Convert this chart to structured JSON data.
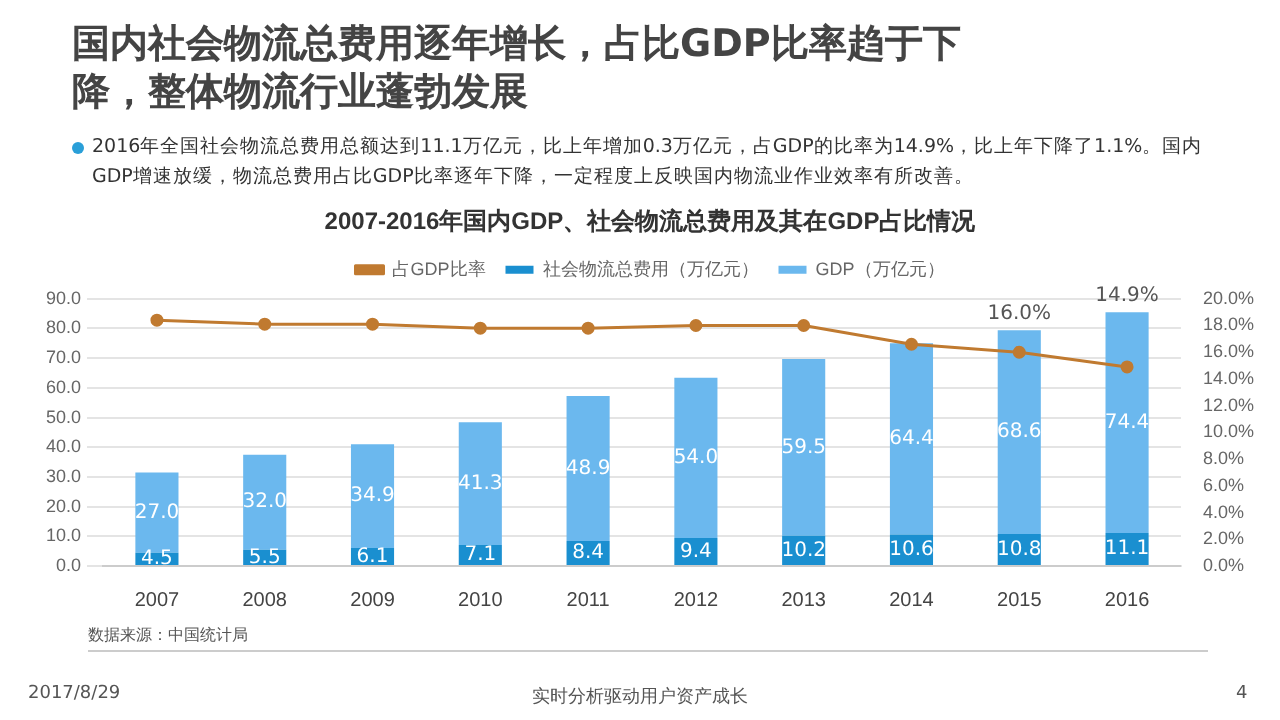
{
  "chart_data": {
    "type": "bar",
    "stacked": true,
    "title": "2007-2016年国内GDP、社会物流总费用及其在GDP占比情况",
    "subtitle": "国内社会物流总费用逐年增长，占比GDP比率趋于下降，整体物流行业蓬勃发展",
    "annotations": [
      "2016年全国社会物流总费用总额达到11.1万亿元，比上年增加0.3万亿元，占GDP的比率为14.9%，比上年下降了1.1%。国内GDP增速放缓，物流总费用占比GDP比率逐年下降，一定程度上反映国内物流业作业效率有所改善。",
      "数据来源：中国统计局",
      "2017/8/29",
      "实时分析驱动用户资产成长",
      "4"
    ],
    "categories": [
      "2007",
      "2008",
      "2009",
      "2010",
      "2011",
      "2012",
      "2013",
      "2014",
      "2015",
      "2016"
    ],
    "series": [
      {
        "name": "社会物流总费用（万亿元）",
        "color": "#1a8fd0",
        "values": [
          4.5,
          5.5,
          6.1,
          7.1,
          8.4,
          9.4,
          10.2,
          10.6,
          10.8,
          11.1
        ],
        "value_labels": [
          "4.5",
          "5.5",
          "6.1",
          "7.1",
          "8.4",
          "9.4",
          "10.2",
          "10.6",
          "10.8",
          "11.1"
        ]
      },
      {
        "name": "GDP（万亿元）",
        "color": "#6bb8ee",
        "values": [
          27.0,
          32.0,
          34.9,
          41.3,
          48.9,
          54.0,
          59.5,
          64.4,
          68.6,
          74.4
        ],
        "value_labels": [
          "27.0",
          "32.0",
          "34.9",
          "41.3",
          "48.9",
          "54.0",
          "59.5",
          "64.4",
          "68.6",
          "74.4"
        ]
      },
      {
        "name": "占GDP比率",
        "type": "line",
        "axis": "y2",
        "color": "#c07a30",
        "values": [
          18.4,
          18.1,
          18.1,
          17.8,
          17.8,
          18.0,
          18.0,
          16.6,
          16.0,
          14.9
        ],
        "value_labels": [
          null,
          null,
          null,
          null,
          null,
          null,
          null,
          null,
          "16.0%",
          "14.9%"
        ]
      }
    ],
    "legend": "top",
    "grid": "y",
    "marker": "circle",
    "ylim": [
      0,
      90
    ],
    "yticks": [
      {
        "value": 0,
        "label": "0.0"
      },
      {
        "value": 10,
        "label": "10.0"
      },
      {
        "value": 20,
        "label": "20.0"
      },
      {
        "value": 30,
        "label": "30.0"
      },
      {
        "value": 40,
        "label": "40.0"
      },
      {
        "value": 50,
        "label": "50.0"
      },
      {
        "value": 60,
        "label": "60.0"
      },
      {
        "value": 70,
        "label": "70.0"
      },
      {
        "value": 80,
        "label": "80.0"
      },
      {
        "value": 90,
        "label": "90.0"
      }
    ],
    "y2lim": [
      0,
      20
    ],
    "y2ticks": [
      {
        "value": 0,
        "label": "0.0%"
      },
      {
        "value": 2,
        "label": "2.0%"
      },
      {
        "value": 4,
        "label": "4.0%"
      },
      {
        "value": 6,
        "label": "6.0%"
      },
      {
        "value": 8,
        "label": "8.0%"
      },
      {
        "value": 10,
        "label": "10.0%"
      },
      {
        "value": 12,
        "label": "12.0%"
      },
      {
        "value": 14,
        "label": "14.0%"
      },
      {
        "value": 16,
        "label": "16.0%"
      },
      {
        "value": 18,
        "label": "18.0%"
      },
      {
        "value": 20,
        "label": "20.0%"
      }
    ]
  }
}
